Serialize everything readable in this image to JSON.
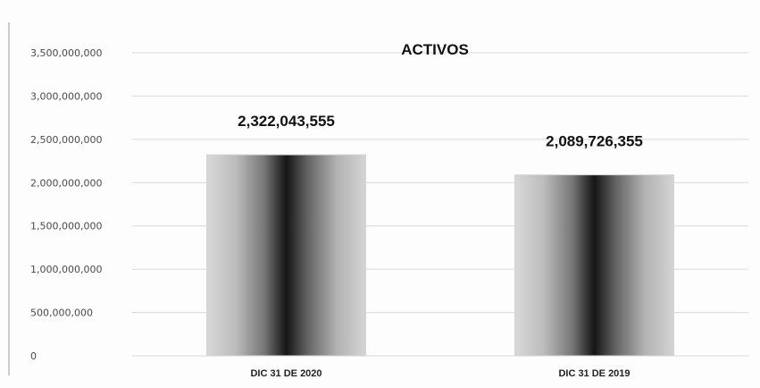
{
  "chart_data": {
    "type": "bar",
    "title": "ACTIVOS",
    "categories": [
      "DIC 31 DE 2020",
      "DIC 31 DE 2019"
    ],
    "values": [
      2322043555,
      2089726355
    ],
    "data_labels": [
      "2,322,043,555",
      "2,089,726,355"
    ],
    "ylim": [
      0,
      3500000000
    ],
    "y_ticks": [
      0,
      500000000,
      1000000000,
      1500000000,
      2000000000,
      2500000000,
      3000000000,
      3500000000
    ],
    "y_tick_labels": [
      "0",
      "500,000,000",
      "1,000,000,000",
      "1,500,000,000",
      "2,000,000,000",
      "2,500,000,000",
      "3,000,000,000",
      "3,500,000,000"
    ],
    "xlabel": "",
    "ylabel": "",
    "grid": true,
    "legend": "none",
    "bar_style": "grayscale-cylinder-gradient",
    "colors": {
      "bar_edge": "#d4d4d4",
      "bar_center": "#151515",
      "grid": "#d9d9d9",
      "text": "#111111"
    }
  }
}
